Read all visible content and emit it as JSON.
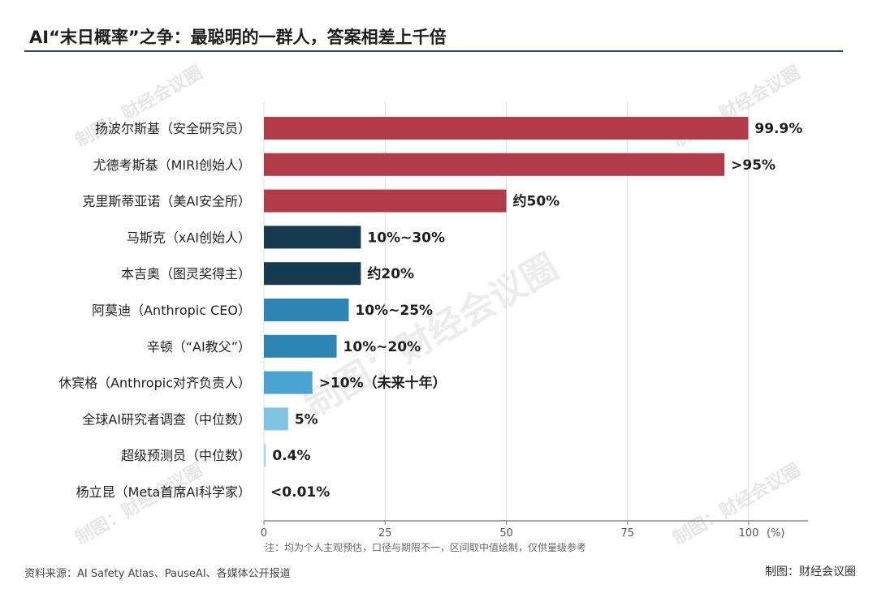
{
  "header": {
    "title": "AI“末日概率”之争：最聪明的一群人，答案相差上千倍"
  },
  "watermark": "制图：财经会议圈",
  "footer": {
    "note": "注：均为个人主观预估，口径与期限不一，区间取中值绘制，仅供量级参考",
    "source": "资料来源：AI Safety Atlas、PauseAI、各媒体公开报道",
    "credit": "制图：财经会议圈"
  },
  "chart_data": {
    "type": "bar",
    "orientation": "horizontal",
    "title": "AI“末日概率”之争：最聪明的一群人，答案相差上千倍",
    "xlim": [
      0,
      100
    ],
    "x_ticks": [
      "0",
      "25",
      "50",
      "75",
      "100"
    ],
    "x_unit": "(%)",
    "grid": true,
    "categories": [
      "扬波尔斯基（安全研究员）",
      "尤德考斯基（MIRI创始人）",
      "克里斯蒂亚诺（美AI安全所）",
      "马斯克（xAI创始人）",
      "本吉奥（图灵奖得主）",
      "阿莫迪（Anthropic CEO）",
      "辛顿（“AI教父”）",
      "休宾格（Anthropic对齐负责人）",
      "全球AI研究者调查（中位数）",
      "超级预测员（中位数）",
      "杨立昆（Meta首席AI科学家）"
    ],
    "values": [
      99.9,
      95,
      50,
      20,
      20,
      17.5,
      15,
      10,
      5,
      0.4,
      0.01
    ],
    "value_labels": [
      "99.9%",
      ">95%",
      "约50%",
      "10%~30%",
      "约20%",
      "10%~25%",
      "10%~20%",
      ">10%（未来十年）",
      "5%",
      "0.4%",
      "<0.01%"
    ],
    "colors": [
      "#b33a48",
      "#b33a48",
      "#b33a48",
      "#163a50",
      "#163a50",
      "#2e86b5",
      "#2e86b5",
      "#4ba3cf",
      "#7fc4e0",
      "#a9d8ec",
      "#c9e8f3"
    ]
  }
}
